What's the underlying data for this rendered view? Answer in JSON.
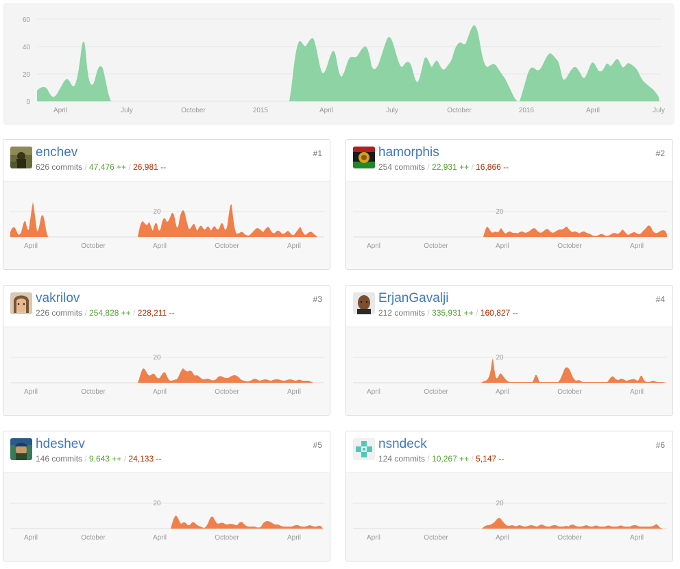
{
  "colors": {
    "main_fill": "#8dd3a4",
    "contrib_fill": "#f17f49",
    "link": "#4078c0",
    "additions": "#55a532",
    "deletions": "#bd2c00"
  },
  "main_chart": {
    "y_ticks": [
      "0",
      "20",
      "40",
      "60"
    ],
    "x_ticks": [
      "April",
      "July",
      "October",
      "2015",
      "April",
      "July",
      "October",
      "2016",
      "April",
      "July"
    ]
  },
  "contributor_x_ticks": [
    "April",
    "October",
    "April",
    "October",
    "April"
  ],
  "contributor_y_tick": "20",
  "contributors": [
    {
      "rank": "#1",
      "name": "enchev",
      "commits": "626 commits",
      "additions": "47,476 ++",
      "deletions": "26,981 --",
      "avatar_icon": "photo-avatar-icon"
    },
    {
      "rank": "#2",
      "name": "hamorphis",
      "commits": "254 commits",
      "additions": "22,931 ++",
      "deletions": "16,866 --",
      "avatar_icon": "rasta-lion-avatar-icon"
    },
    {
      "rank": "#3",
      "name": "vakrilov",
      "commits": "226 commits",
      "additions": "254,828 ++",
      "deletions": "228,211 --",
      "avatar_icon": "photo-avatar-icon"
    },
    {
      "rank": "#4",
      "name": "ErjanGavalji",
      "commits": "212 commits",
      "additions": "335,931 ++",
      "deletions": "160,827 --",
      "avatar_icon": "photo-avatar-icon"
    },
    {
      "rank": "#5",
      "name": "hdeshev",
      "commits": "146 commits",
      "additions": "9,643 ++",
      "deletions": "24,133 --",
      "avatar_icon": "photo-avatar-icon"
    },
    {
      "rank": "#6",
      "name": "nsndeck",
      "commits": "124 commits",
      "additions": "10,267 ++",
      "deletions": "5,147 --",
      "avatar_icon": "identicon-avatar-icon"
    }
  ]
}
